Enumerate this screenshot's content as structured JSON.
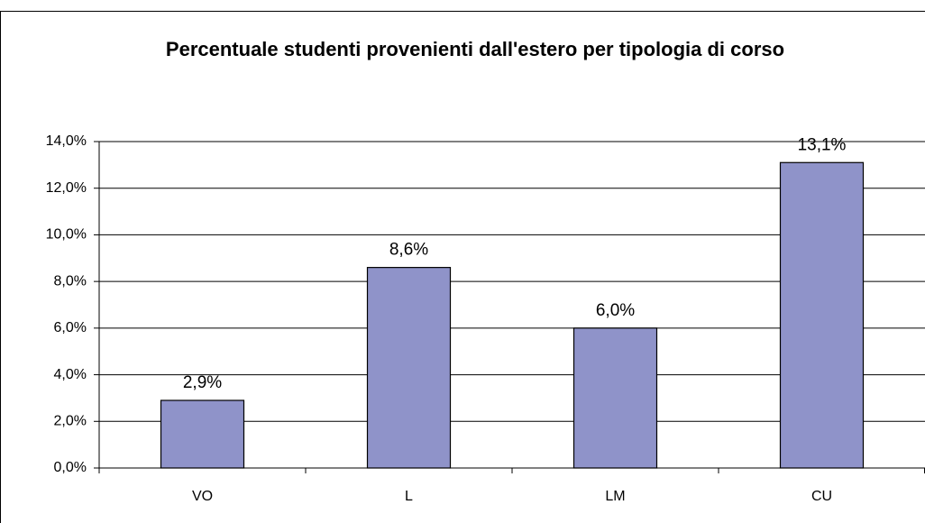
{
  "chart_data": {
    "type": "bar",
    "title": "Percentuale studenti provenienti dall'estero per tipologia di corso",
    "categories": [
      "VO",
      "L",
      "LM",
      "CU"
    ],
    "values": [
      2.9,
      8.6,
      6.0,
      13.1
    ],
    "value_labels": [
      "2,9%",
      "8,6%",
      "6,0%",
      "13,1%"
    ],
    "color": "#8f93c9",
    "ylim": [
      0,
      14
    ],
    "yticks": [
      {
        "value": 0,
        "label": "0,0%"
      },
      {
        "value": 2,
        "label": "2,0%"
      },
      {
        "value": 4,
        "label": "4,0%"
      },
      {
        "value": 6,
        "label": "6,0%"
      },
      {
        "value": 8,
        "label": "8,0%"
      },
      {
        "value": 10,
        "label": "10,0%"
      },
      {
        "value": 12,
        "label": "12,0%"
      },
      {
        "value": 14,
        "label": "14,0%"
      }
    ],
    "grid": true
  }
}
